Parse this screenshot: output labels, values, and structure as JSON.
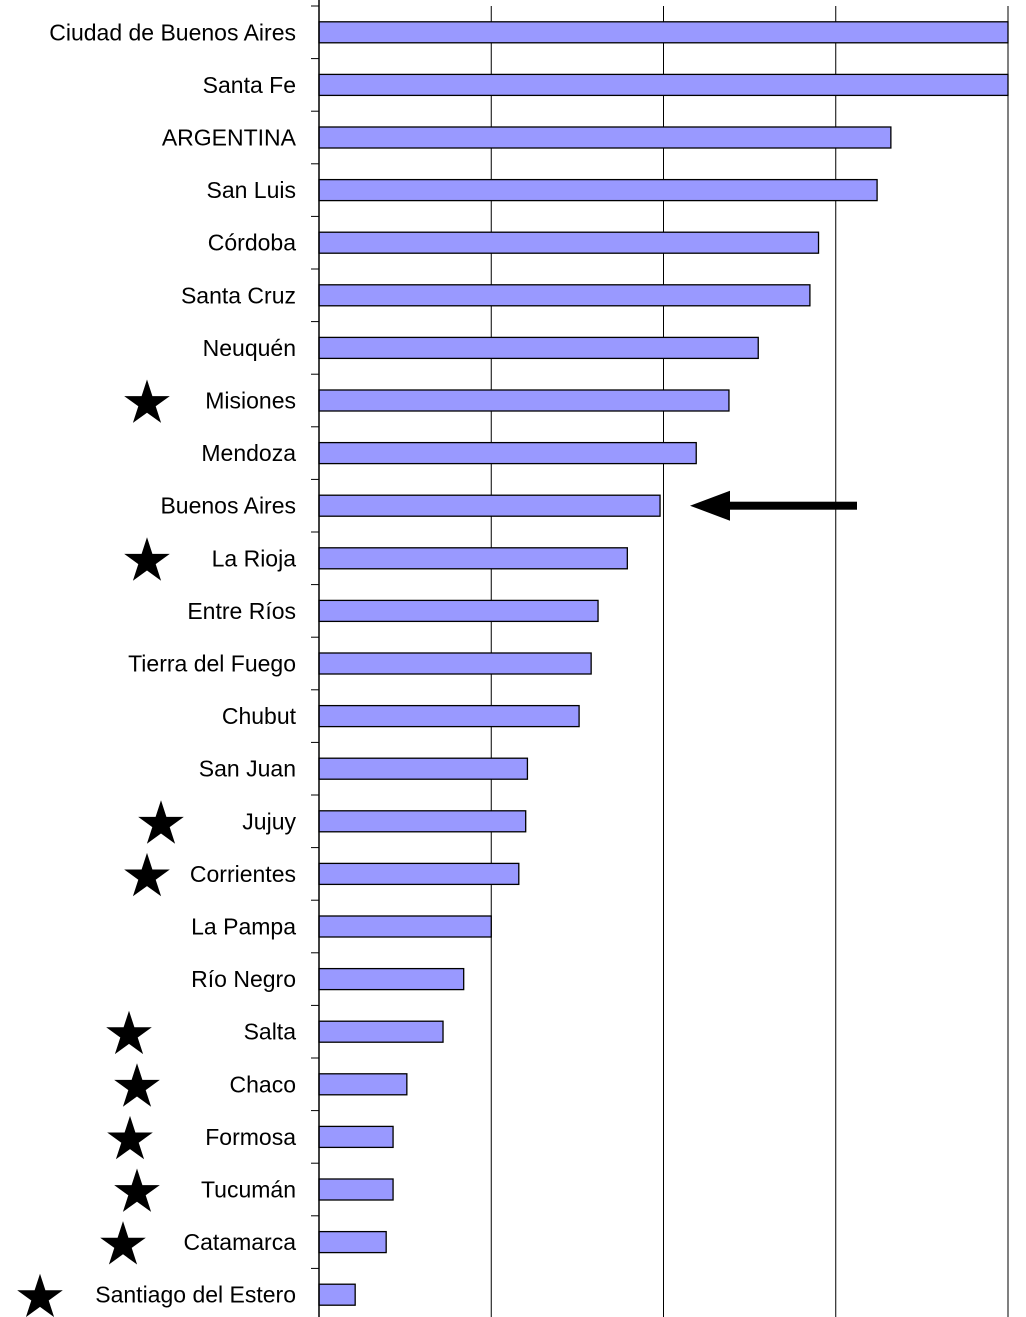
{
  "chart_data": {
    "type": "bar",
    "orientation": "horizontal",
    "title": "",
    "xlabel": "",
    "ylabel": "",
    "grid": true,
    "xlim": [
      0,
      4
    ],
    "bar_color": "#9999ff",
    "bar_border_color": "#000000",
    "categories": [
      "Ciudad de Buenos Aires",
      "Santa Fe",
      "ARGENTINA",
      "San Luis",
      "Córdoba",
      "Santa Cruz",
      "Neuquén",
      "Misiones",
      "Mendoza",
      "Buenos Aires",
      "La Rioja",
      "Entre Ríos",
      "Tierra del Fuego",
      "Chubut",
      "San Juan",
      "Jujuy",
      "Corrientes",
      "La Pampa",
      "Río Negro",
      "Salta",
      "Chaco",
      "Formosa",
      "Tucumán",
      "Catamarca",
      "Santiago del Estero"
    ],
    "values": [
      4.0,
      4.0,
      3.32,
      3.24,
      2.9,
      2.85,
      2.55,
      2.38,
      2.19,
      1.98,
      1.79,
      1.62,
      1.58,
      1.51,
      1.21,
      1.2,
      1.16,
      1.0,
      0.84,
      0.72,
      0.51,
      0.43,
      0.43,
      0.39,
      0.21
    ],
    "starred": [
      "Misiones",
      "La Rioja",
      "Jujuy",
      "Corrientes",
      "Salta",
      "Chaco",
      "Formosa",
      "Tucumán",
      "Catamarca",
      "Santiago del Estero"
    ],
    "annotations": [
      {
        "type": "arrow",
        "points_to": "Buenos Aires",
        "icon": "left-arrow-icon"
      },
      {
        "type": "star-markers",
        "icon": "star-icon"
      }
    ]
  }
}
